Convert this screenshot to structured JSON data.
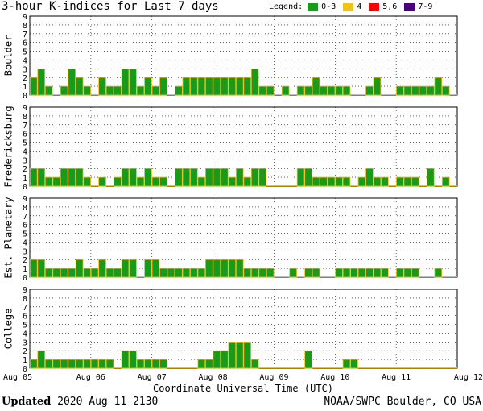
{
  "chart_data": {
    "type": "bar",
    "title": "3-hour K-indices for Last 7 days",
    "xlabel": "Coordinate Universal Time (UTC)",
    "ylim": [
      0,
      9
    ],
    "y_ticks": [
      "0",
      "1",
      "2",
      "3",
      "4",
      "5",
      "6",
      "7",
      "8",
      "9"
    ],
    "x_ticks": [
      "Aug 05",
      "Aug 06",
      "Aug 07",
      "Aug 08",
      "Aug 09",
      "Aug 10",
      "Aug 11",
      "Aug 12"
    ],
    "grid": true,
    "legend": {
      "label": "Legend:",
      "placement": "top-right",
      "items": [
        {
          "label": "0-3",
          "color": "#1a9a1a"
        },
        {
          "label": "4",
          "color": "#f2c21a"
        },
        {
          "label": "5,6",
          "color": "#ff0000"
        },
        {
          "label": "7-9",
          "color": "#4b0082"
        }
      ]
    },
    "panels": [
      {
        "name": "Boulder",
        "values": [
          2,
          3,
          1,
          0,
          1,
          3,
          2,
          1,
          0,
          2,
          1,
          1,
          3,
          3,
          1,
          2,
          1,
          2,
          0,
          1,
          2,
          2,
          2,
          2,
          2,
          2,
          2,
          2,
          2,
          3,
          1,
          1,
          0,
          1,
          0,
          1,
          1,
          2,
          1,
          1,
          1,
          1,
          0,
          0,
          1,
          2,
          0,
          0,
          1,
          1,
          1,
          1,
          1,
          2,
          1,
          0
        ]
      },
      {
        "name": "Fredericksburg",
        "values": [
          2,
          2,
          1,
          1,
          2,
          2,
          2,
          1,
          0,
          1,
          0,
          1,
          2,
          2,
          1,
          2,
          1,
          1,
          0,
          2,
          2,
          2,
          1,
          2,
          2,
          2,
          1,
          2,
          1,
          2,
          2,
          0,
          0,
          0,
          0,
          2,
          2,
          1,
          1,
          1,
          1,
          1,
          0,
          1,
          2,
          1,
          1,
          0,
          1,
          1,
          1,
          0,
          2,
          0,
          1,
          0
        ]
      },
      {
        "name": "Est. Planetary",
        "values": [
          2,
          2,
          1,
          1,
          1,
          1,
          2,
          1,
          1,
          2,
          1,
          1,
          2,
          2,
          0,
          2,
          2,
          1,
          1,
          1,
          1,
          1,
          1,
          2,
          2,
          2,
          2,
          2,
          1,
          1,
          1,
          1,
          0,
          0,
          1,
          0,
          1,
          1,
          0,
          0,
          1,
          1,
          1,
          1,
          1,
          1,
          1,
          0,
          1,
          1,
          1,
          0,
          0,
          1,
          0,
          0
        ]
      },
      {
        "name": "College",
        "values": [
          1,
          2,
          1,
          1,
          1,
          1,
          1,
          1,
          1,
          1,
          1,
          0,
          2,
          2,
          1,
          1,
          1,
          1,
          0,
          0,
          0,
          0,
          1,
          1,
          2,
          2,
          3,
          3,
          3,
          1,
          0,
          0,
          0,
          0,
          0,
          0,
          2,
          0,
          0,
          0,
          0,
          1,
          1,
          0,
          0,
          0,
          0,
          0,
          0,
          0,
          0,
          0,
          0,
          0,
          0,
          0
        ]
      }
    ]
  },
  "footer": {
    "updated_label": "Updated",
    "updated_value": "2020 Aug 11 2130",
    "source": "NOAA/SWPC Boulder, CO USA"
  }
}
